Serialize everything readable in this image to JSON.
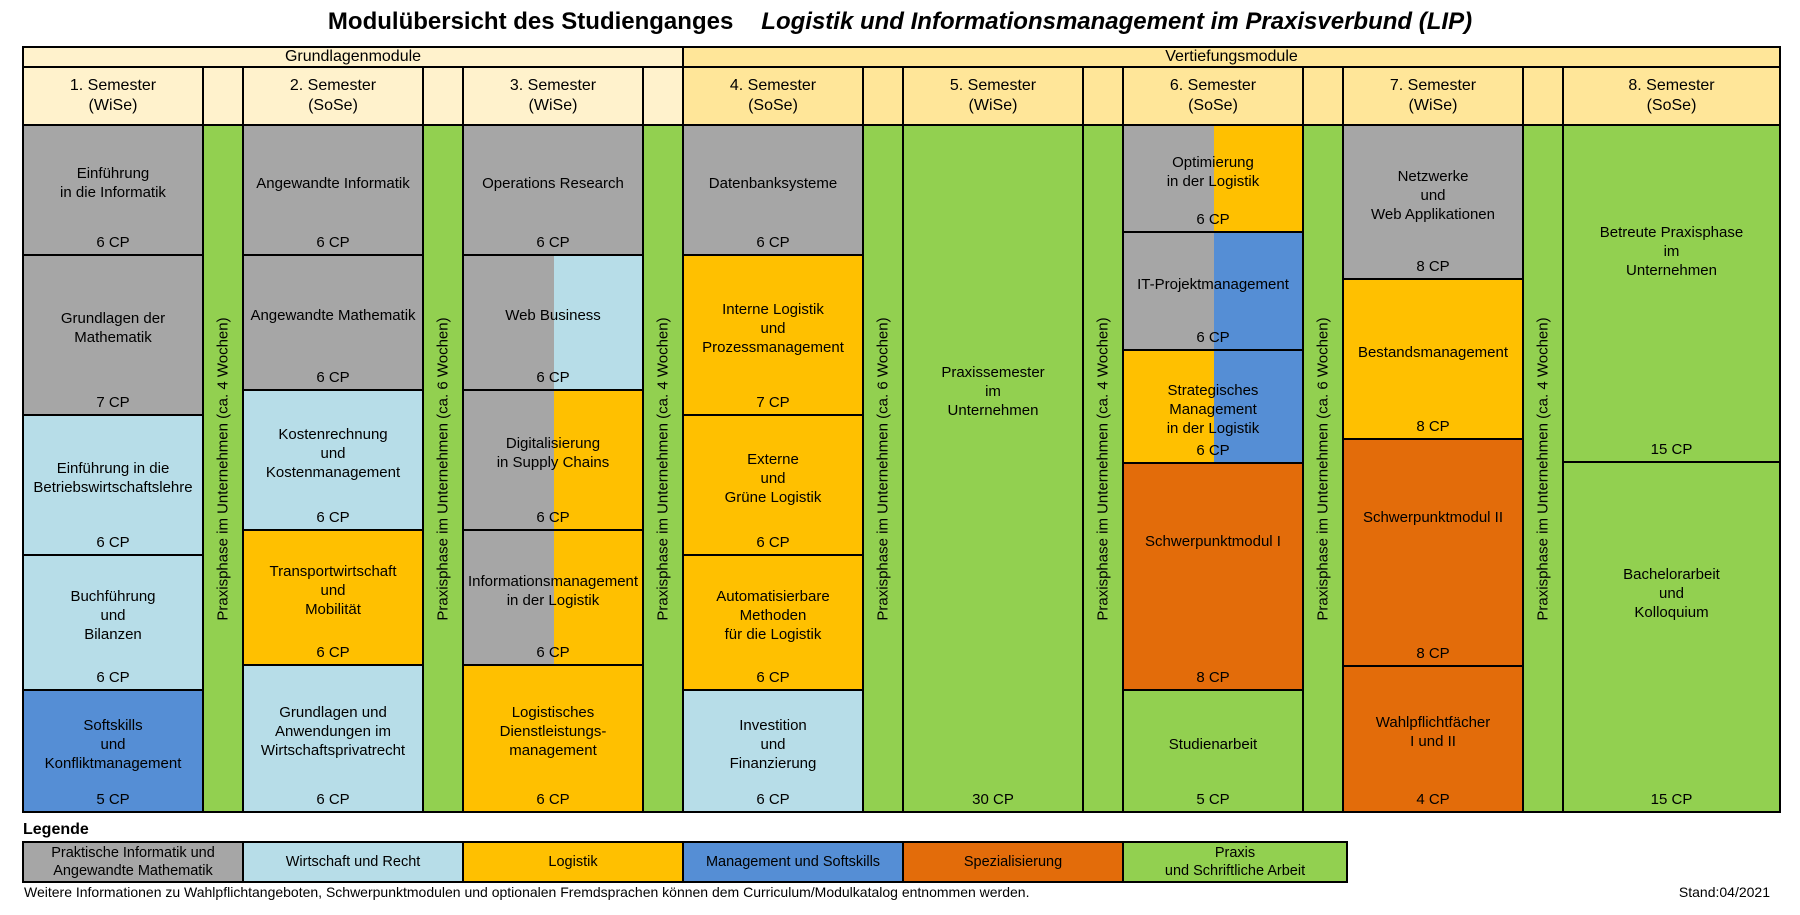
{
  "title": "Modulübersicht des Studienganges",
  "subtitle": "Logistik und Informationsmanagement im Praxisverbund (LIP)",
  "colors": {
    "gray": "#a6a6a6",
    "lightblue": "#b7dde8",
    "orange": "#ffc000",
    "blue": "#558ed5",
    "darkorange": "#e36c0a",
    "green": "#92d050",
    "header_light": "#fff2cc",
    "header_dark": "#ffe699"
  },
  "groups": [
    {
      "label": "Grundlagenmodule",
      "color": "header_light"
    },
    {
      "label": "Vertiefungsmodule",
      "color": "header_dark"
    }
  ],
  "semesters": [
    {
      "label": "1. Semester\n(WiSe)"
    },
    {
      "label": "2. Semester\n(SoSe)"
    },
    {
      "label": "3. Semester\n(WiSe)"
    },
    {
      "label": "4. Semester\n(SoSe)"
    },
    {
      "label": "5. Semester\n(WiSe)"
    },
    {
      "label": "6. Semester\n(SoSe)"
    },
    {
      "label": "7. Semester\n(WiSe)"
    },
    {
      "label": "8. Semester\n(SoSe)"
    }
  ],
  "praxis_strips": [
    "Praxisphase im Unternehmen (ca. 4 Wochen)",
    "Praxisphase im Unternehmen (ca. 6 Wochen)",
    "Praxisphase im Unternehmen (ca. 4 Wochen)",
    "Praxisphase im Unternehmen (ca. 6 Wochen)",
    "Praxisphase im Unternehmen (ca. 4 Wochen)",
    "Praxisphase im Unternehmen (ca. 6 Wochen)",
    "Praxisphase im Unternehmen (ca. 4 Wochen)"
  ],
  "modules": [
    [
      {
        "name": "Einführung\nin die Informatik",
        "cp": "6 CP",
        "color": "gray"
      },
      {
        "name": "Grundlagen der\nMathematik",
        "cp": "7 CP",
        "color": "gray"
      },
      {
        "name": "Einführung in die\nBetriebswirtschaftslehre",
        "cp": "6 CP",
        "color": "lightblue"
      },
      {
        "name": "Buchführung\nund\nBilanzen",
        "cp": "6 CP",
        "color": "lightblue"
      },
      {
        "name": "Softskills\nund\nKonfliktmanagement",
        "cp": "5 CP",
        "color": "blue"
      }
    ],
    [
      {
        "name": "Angewandte Informatik",
        "cp": "6 CP",
        "color": "gray"
      },
      {
        "name": "Angewandte Mathematik",
        "cp": "6 CP",
        "color": "gray"
      },
      {
        "name": "Kostenrechnung\nund\nKostenmanagement",
        "cp": "6 CP",
        "color": "lightblue"
      },
      {
        "name": "Transportwirtschaft\nund\nMobilität",
        "cp": "6 CP",
        "color": "orange"
      },
      {
        "name": "Grundlagen und\nAnwendungen im\nWirtschaftsprivatrecht",
        "cp": "6 CP",
        "color": "lightblue"
      }
    ],
    [
      {
        "name": "Operations Research",
        "cp": "6 CP",
        "color": "gray"
      },
      {
        "name": "Web Business",
        "cp": "6 CP",
        "color": "gray",
        "color2": "lightblue"
      },
      {
        "name": "Digitalisierung\nin Supply Chains",
        "cp": "6 CP",
        "color": "gray",
        "color2": "orange"
      },
      {
        "name": "Informationsmanagement\nin der Logistik",
        "cp": "6 CP",
        "color": "gray",
        "color2": "orange"
      },
      {
        "name": "Logistisches\nDienstleistungs-\nmanagement",
        "cp": "6 CP",
        "color": "orange"
      }
    ],
    [
      {
        "name": "Datenbanksysteme",
        "cp": "6 CP",
        "color": "gray"
      },
      {
        "name": "Interne Logistik\nund\nProzessmanagement",
        "cp": "7 CP",
        "color": "orange"
      },
      {
        "name": "Externe\nund\nGrüne Logistik",
        "cp": "6 CP",
        "color": "orange"
      },
      {
        "name": "Automatisierbare\nMethoden\nfür die Logistik",
        "cp": "6 CP",
        "color": "orange"
      },
      {
        "name": "Investition\nund\nFinanzierung",
        "cp": "6 CP",
        "color": "lightblue"
      }
    ],
    [
      {
        "name": "Praxissemester\nim\nUnternehmen",
        "cp": "30 CP",
        "color": "green"
      }
    ],
    [
      {
        "name": "Optimierung\nin der Logistik",
        "cp": "6 CP",
        "color": "gray",
        "color2": "orange"
      },
      {
        "name": "IT-Projektmanagement",
        "cp": "6 CP",
        "color": "gray",
        "color2": "blue"
      },
      {
        "name": "Strategisches Management\nin der Logistik",
        "cp": "6 CP",
        "color": "orange",
        "color2": "blue"
      },
      {
        "name": "Schwerpunktmodul I",
        "cp": "8 CP",
        "color": "darkorange"
      },
      {
        "name": "Studienarbeit",
        "cp": "5 CP",
        "color": "green"
      }
    ],
    [
      {
        "name": "Netzwerke\nund\nWeb Applikationen",
        "cp": "8 CP",
        "color": "gray"
      },
      {
        "name": "Bestandsmanagement",
        "cp": "8 CP",
        "color": "orange"
      },
      {
        "name": "Schwerpunktmodul II",
        "cp": "8 CP",
        "color": "darkorange"
      },
      {
        "name": "Wahlpflichtfächer\nI und II",
        "cp": "4 CP",
        "color": "darkorange"
      }
    ],
    [
      {
        "name": "Betreute Praxisphase\nim\nUnternehmen",
        "cp": "15 CP",
        "color": "green"
      },
      {
        "name": "Bachelorarbeit\nund\nKolloquium",
        "cp": "15 CP",
        "color": "green"
      }
    ]
  ],
  "legend": {
    "title": "Legende",
    "items": [
      {
        "label": "Praktische Informatik und\nAngewandte Mathematik",
        "color": "gray"
      },
      {
        "label": "Wirtschaft und Recht",
        "color": "lightblue"
      },
      {
        "label": "Logistik",
        "color": "orange"
      },
      {
        "label": "Management und Softskills",
        "color": "blue"
      },
      {
        "label": "Spezialisierung",
        "color": "darkorange"
      },
      {
        "label": "Praxis\nund Schriftliche Arbeit",
        "color": "green"
      }
    ]
  },
  "footnote": "Weitere Informationen zu Wahlpflichtangeboten, Schwerpunktmodulen und optionalen Fremdsprachen können dem Curriculum/Modulkatalog entnommen werden.",
  "stand": "Stand:04/2021"
}
